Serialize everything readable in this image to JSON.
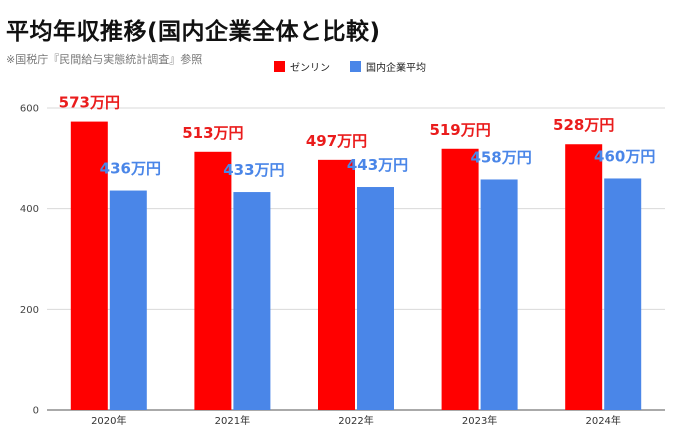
{
  "title": "平均年収推移(国内企業全体と比較)",
  "subtitle": "※国税庁『民間給与実態統計調査』参照",
  "colors": {
    "series1": "#ff0000",
    "series2": "#4a86e8",
    "grid": "#d9d9d9",
    "label1": "#ea1c1c",
    "label2": "#4a86e8"
  },
  "chart_data": {
    "type": "bar",
    "categories": [
      "2020年",
      "2021年",
      "2022年",
      "2023年",
      "2024年"
    ],
    "series": [
      {
        "name": "ゼンリン",
        "values": [
          573,
          513,
          497,
          519,
          528
        ],
        "labels": [
          "573万円",
          "513万円",
          "497万円",
          "519万円",
          "528万円"
        ]
      },
      {
        "name": "国内企業平均",
        "values": [
          436,
          433,
          443,
          458,
          460
        ],
        "labels": [
          "436万円",
          "433万円",
          "443万円",
          "458万円",
          "460万円"
        ]
      }
    ],
    "ylim": [
      0,
      600
    ],
    "yticks": [
      0,
      200,
      400,
      600
    ],
    "grid": true,
    "legend": "top-center"
  }
}
